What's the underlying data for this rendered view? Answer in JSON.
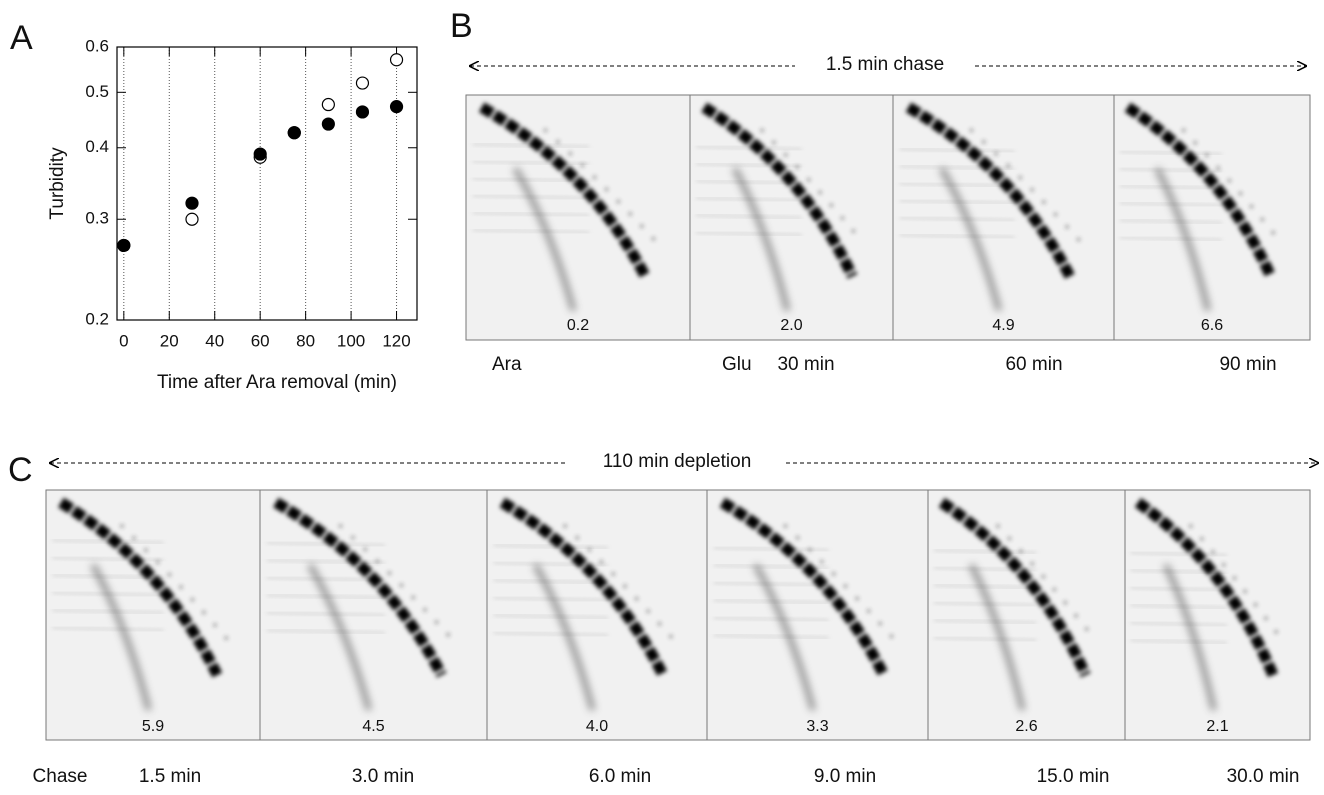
{
  "panel_labels": [
    "A",
    "B",
    "C"
  ],
  "chart_data": {
    "type": "scatter",
    "xlabel": "Time after Ara removal (min)",
    "ylabel": "Turbidity",
    "xlim": [
      -3,
      129
    ],
    "ylim": [
      0.2,
      0.6
    ],
    "ylog": true,
    "xticks": [
      0,
      20,
      40,
      60,
      80,
      100,
      120
    ],
    "yticks": [
      0.2,
      0.3,
      0.4,
      0.5,
      0.6
    ],
    "x_grid": true,
    "series": [
      {
        "color": "#000000",
        "filled": false,
        "x": [
          0,
          30,
          60,
          75,
          90,
          105,
          120
        ],
        "values": [
          0.27,
          0.3,
          0.385,
          0.425,
          0.476,
          0.519,
          0.57
        ]
      },
      {
        "color": "#000000",
        "filled": true,
        "x": [
          0,
          30,
          60,
          75,
          90,
          105,
          120
        ],
        "values": [
          0.27,
          0.32,
          0.39,
          0.425,
          0.44,
          0.462,
          0.472
        ]
      }
    ]
  },
  "panel_b": {
    "header": "1.5 min chase",
    "lanes": [
      "0.2",
      "2.0",
      "4.9",
      "6.6"
    ],
    "labels": [
      "Ara",
      "Glu",
      "30 min",
      "60 min",
      "90 min"
    ]
  },
  "panel_c": {
    "header": "110 min depletion",
    "lanes": [
      "5.9",
      "4.5",
      "4.0",
      "3.3",
      "2.6",
      "2.1"
    ],
    "labels": [
      "Chase",
      "1.5 min",
      "3.0 min",
      "6.0 min",
      "9.0 min",
      "15.0 min",
      "30.0 min"
    ]
  }
}
